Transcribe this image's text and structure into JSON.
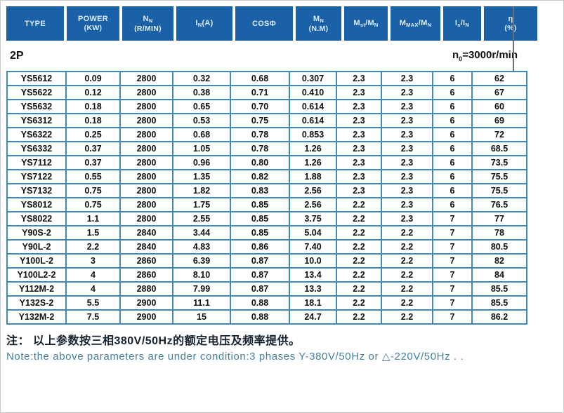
{
  "colors": {
    "header_bg": "#1a61a7",
    "header_text": "#ddecf8",
    "table_border": "#3e8cb5",
    "body_text": "#111111",
    "note_en_color": "#44809f"
  },
  "page": {
    "section_label": "2P",
    "speed_note": {
      "pre": "n",
      "sub": "0",
      "post": "=3000r/min"
    },
    "note_cn": "注： 以上参数按三相380V/50Hz的额定电压及频率提供。",
    "note_en": "Note:the above parameters are under condition:3 phases Y-380V/50Hz or △-220V/50Hz . ."
  },
  "table": {
    "headers": [
      {
        "line1": [
          {
            "t": "TYPE"
          }
        ],
        "line2": ""
      },
      {
        "line1": [
          {
            "t": "POWER"
          }
        ],
        "line2": "(KW)"
      },
      {
        "line1": [
          {
            "t": "N"
          },
          {
            "t": "N",
            "sub": true
          }
        ],
        "line2": "(R/MIN)"
      },
      {
        "line1": [
          {
            "t": "I"
          },
          {
            "t": "N",
            "sub": true
          },
          {
            "t": "(A)"
          }
        ],
        "line2": ""
      },
      {
        "line1": [
          {
            "t": "COSΦ"
          }
        ],
        "line2": ""
      },
      {
        "line1": [
          {
            "t": "M"
          },
          {
            "t": "N",
            "sub": true
          }
        ],
        "line2": "(N.M)"
      },
      {
        "line1": [
          {
            "t": "M"
          },
          {
            "t": "st",
            "sub": true
          },
          {
            "t": "/M"
          },
          {
            "t": "N",
            "sub": true
          }
        ],
        "line2": ""
      },
      {
        "line1": [
          {
            "t": "M"
          },
          {
            "t": "MAX",
            "sub": true
          },
          {
            "t": "/M"
          },
          {
            "t": "N",
            "sub": true
          }
        ],
        "line2": ""
      },
      {
        "line1": [
          {
            "t": "I"
          },
          {
            "t": "s",
            "sub": true
          },
          {
            "t": "/I"
          },
          {
            "t": "N",
            "sub": true
          }
        ],
        "line2": ""
      },
      {
        "line1": [
          {
            "t": "η"
          }
        ],
        "line2": "(%)"
      }
    ],
    "rows": [
      [
        "YS5612",
        "0.09",
        "2800",
        "0.32",
        "0.68",
        "0.307",
        "2.3",
        "2.3",
        "6",
        "62"
      ],
      [
        "YS5622",
        "0.12",
        "2800",
        "0.38",
        "0.71",
        "0.410",
        "2.3",
        "2.3",
        "6",
        "67"
      ],
      [
        "YS5632",
        "0.18",
        "2800",
        "0.65",
        "0.70",
        "0.614",
        "2.3",
        "2.3",
        "6",
        "60"
      ],
      [
        "YS6312",
        "0.18",
        "2800",
        "0.53",
        "0.75",
        "0.614",
        "2.3",
        "2.3",
        "6",
        "69"
      ],
      [
        "YS6322",
        "0.25",
        "2800",
        "0.68",
        "0.78",
        "0.853",
        "2.3",
        "2.3",
        "6",
        "72"
      ],
      [
        "YS6332",
        "0.37",
        "2800",
        "1.05",
        "0.78",
        "1.26",
        "2.3",
        "2.3",
        "6",
        "68.5"
      ],
      [
        "YS7112",
        "0.37",
        "2800",
        "0.96",
        "0.80",
        "1.26",
        "2.3",
        "2.3",
        "6",
        "73.5"
      ],
      [
        "YS7122",
        "0.55",
        "2800",
        "1.35",
        "0.82",
        "1.88",
        "2.3",
        "2.3",
        "6",
        "75.5"
      ],
      [
        "YS7132",
        "0.75",
        "2800",
        "1.82",
        "0.83",
        "2.56",
        "2.3",
        "2.3",
        "6",
        "75.5"
      ],
      [
        "YS8012",
        "0.75",
        "2800",
        "1.75",
        "0.85",
        "2.56",
        "2.2",
        "2.3",
        "6",
        "76.5"
      ],
      [
        "YS8022",
        "1.1",
        "2800",
        "2.55",
        "0.85",
        "3.75",
        "2.2",
        "2.3",
        "7",
        "77"
      ],
      [
        "Y90S-2",
        "1.5",
        "2840",
        "3.44",
        "0.85",
        "5.04",
        "2.2",
        "2.2",
        "7",
        "78"
      ],
      [
        "Y90L-2",
        "2.2",
        "2840",
        "4.83",
        "0.86",
        "7.40",
        "2.2",
        "2.2",
        "7",
        "80.5"
      ],
      [
        "Y100L-2",
        "3",
        "2860",
        "6.39",
        "0.87",
        "10.0",
        "2.2",
        "2.2",
        "7",
        "82"
      ],
      [
        "Y100L2-2",
        "4",
        "2860",
        "8.10",
        "0.87",
        "13.4",
        "2.2",
        "2.2",
        "7",
        "84"
      ],
      [
        "Y112M-2",
        "4",
        "2880",
        "7.99",
        "0.87",
        "13.3",
        "2.2",
        "2.2",
        "7",
        "85.5"
      ],
      [
        "Y132S-2",
        "5.5",
        "2900",
        "11.1",
        "0.88",
        "18.1",
        "2.2",
        "2.2",
        "7",
        "85.5"
      ],
      [
        "Y132M-2",
        "7.5",
        "2900",
        "15",
        "0.88",
        "24.7",
        "2.2",
        "2.2",
        "7",
        "86.2"
      ]
    ]
  }
}
